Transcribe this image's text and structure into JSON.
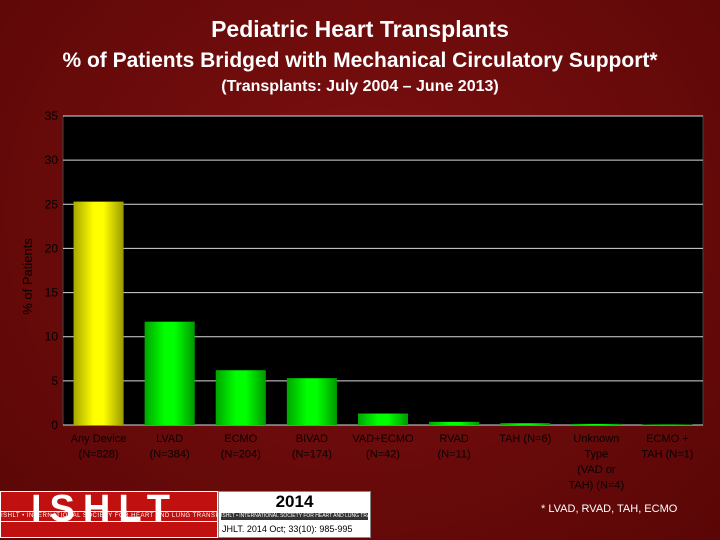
{
  "header": {
    "title": "Pediatric Heart Transplants",
    "subtitle": "% of Patients Bridged with Mechanical Circulatory Support*",
    "range": "(Transplants: July 2004 – June 2013)"
  },
  "chart_data": {
    "type": "bar",
    "ylabel": "% of Patients",
    "ylim": [
      0,
      35
    ],
    "yticks": [
      0,
      5,
      10,
      15,
      20,
      25,
      30,
      35
    ],
    "grid": true,
    "categories": [
      [
        "Any Device",
        "(N=828)"
      ],
      [
        "LVAD",
        "(N=384)"
      ],
      [
        "ECMO",
        "(N=204)"
      ],
      [
        "BIVAD",
        "(N=174)"
      ],
      [
        "VAD+ECMO",
        "(N=42)"
      ],
      [
        "RVAD",
        "(N=11)"
      ],
      [
        "TAH (N=6)"
      ],
      [
        "Unknown",
        "Type",
        "(VAD or",
        "TAH) (N=4)"
      ],
      [
        "ECMO +",
        "TAH (N=1)"
      ]
    ],
    "values": [
      25.3,
      11.7,
      6.2,
      5.3,
      1.3,
      0.35,
      0.2,
      0.12,
      0.03
    ],
    "bar_colors": [
      "#ffff00",
      "#00ff00",
      "#00ff00",
      "#00ff00",
      "#00ff00",
      "#00ff00",
      "#00ff00",
      "#00ff00",
      "#00ff00"
    ]
  },
  "footer": {
    "logo_text": "ISHLT",
    "logo_band": "ISHLT • INTERNATIONAL SOCIETY FOR HEART AND LUNG TRANSPLANTATION",
    "year": "2014",
    "band": "ISHLT • INTERNATIONAL SOCIETY FOR HEART AND LUNG TRANSPLANTATION",
    "citation": "JHLT. 2014 Oct; 33(10): 985-995",
    "footnote": "* LVAD, RVAD, TAH, ECMO"
  }
}
